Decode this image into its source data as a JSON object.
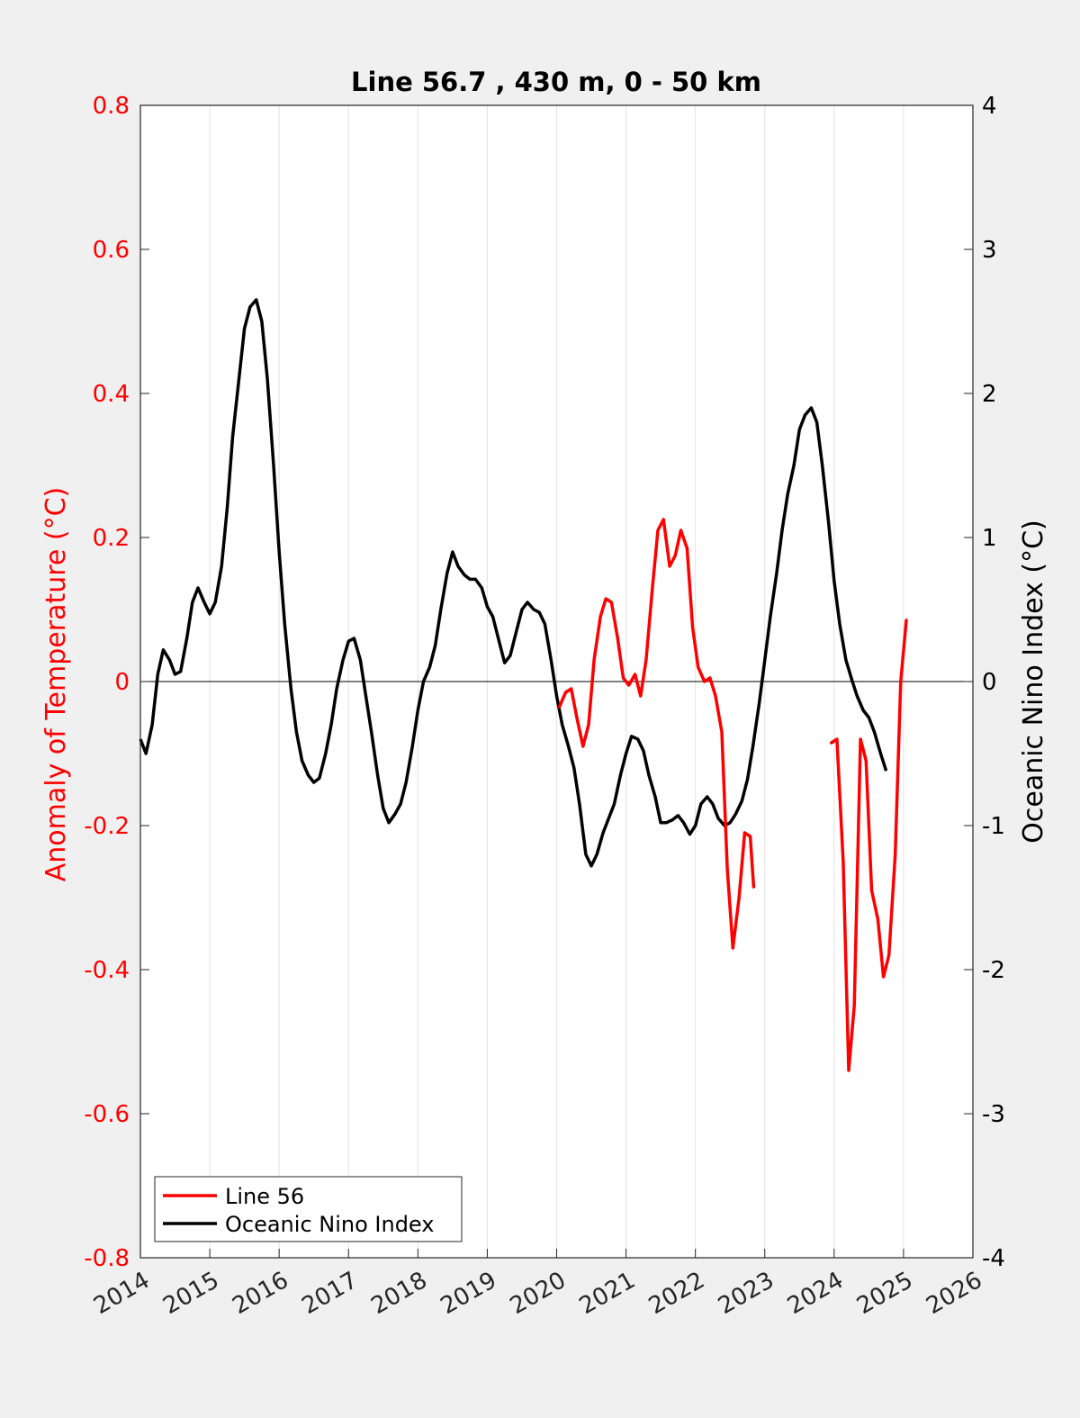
{
  "chart_data": {
    "type": "line",
    "title": "Line 56.7 , 430 m, 0 - 50 km",
    "xlabel": "",
    "ylabel_left": "Anomaly of Temperature (°C)",
    "ylabel_right": "Oceanic Nino Index (°C)",
    "xlim": [
      2014,
      2026
    ],
    "ylim_left": [
      -0.8,
      0.8
    ],
    "ylim_right": [
      -4,
      4
    ],
    "x_ticks": [
      "2014",
      "2015",
      "2016",
      "2017",
      "2018",
      "2019",
      "2020",
      "2021",
      "2022",
      "2023",
      "2024",
      "2025",
      "2026"
    ],
    "y_ticks_left": [
      "0.8",
      "0.6",
      "0.4",
      "0.2",
      "0",
      "-0.2",
      "-0.4",
      "-0.6",
      "-0.8"
    ],
    "y_ticks_right": [
      "4",
      "3",
      "2",
      "1",
      "0",
      "-1",
      "-2",
      "-3",
      "-4"
    ],
    "grid": "vertical",
    "legend_position": "bottom-left",
    "colors": {
      "line56": "#ff0000",
      "oni": "#000000",
      "left_axis": "#ff0000",
      "right_axis": "#000000"
    },
    "series": [
      {
        "name": "Line 56",
        "axis": "left",
        "segments": [
          [
            [
              2020.04,
              -0.035
            ],
            [
              2020.13,
              -0.015
            ],
            [
              2020.21,
              -0.01
            ],
            [
              2020.29,
              -0.05
            ],
            [
              2020.38,
              -0.09
            ],
            [
              2020.46,
              -0.06
            ],
            [
              2020.54,
              0.03
            ],
            [
              2020.63,
              0.09
            ],
            [
              2020.71,
              0.115
            ],
            [
              2020.79,
              0.11
            ],
            [
              2020.88,
              0.06
            ],
            [
              2020.96,
              0.005
            ],
            [
              2021.04,
              -0.005
            ],
            [
              2021.13,
              0.01
            ],
            [
              2021.21,
              -0.02
            ],
            [
              2021.29,
              0.03
            ],
            [
              2021.38,
              0.13
            ],
            [
              2021.46,
              0.21
            ],
            [
              2021.54,
              0.225
            ],
            [
              2021.63,
              0.16
            ],
            [
              2021.71,
              0.175
            ],
            [
              2021.79,
              0.21
            ],
            [
              2021.88,
              0.185
            ],
            [
              2021.96,
              0.075
            ],
            [
              2022.04,
              0.02
            ],
            [
              2022.13,
              0.0
            ],
            [
              2022.21,
              0.005
            ],
            [
              2022.29,
              -0.02
            ],
            [
              2022.38,
              -0.07
            ],
            [
              2022.46,
              -0.26
            ],
            [
              2022.54,
              -0.37
            ],
            [
              2022.63,
              -0.3
            ],
            [
              2022.71,
              -0.21
            ],
            [
              2022.79,
              -0.215
            ],
            [
              2022.84,
              -0.285
            ]
          ],
          [
            [
              2023.96,
              -0.085
            ],
            [
              2024.04,
              -0.08
            ],
            [
              2024.13,
              -0.25
            ],
            [
              2024.21,
              -0.54
            ],
            [
              2024.29,
              -0.45
            ],
            [
              2024.38,
              -0.08
            ],
            [
              2024.46,
              -0.11
            ],
            [
              2024.54,
              -0.29
            ],
            [
              2024.63,
              -0.33
            ],
            [
              2024.71,
              -0.41
            ],
            [
              2024.79,
              -0.38
            ],
            [
              2024.88,
              -0.24
            ],
            [
              2024.96,
              0.0
            ],
            [
              2025.04,
              0.085
            ]
          ]
        ]
      },
      {
        "name": "Oceanic Nino Index",
        "axis": "right",
        "points": [
          [
            2014.0,
            -0.4
          ],
          [
            2014.08,
            -0.5
          ],
          [
            2014.17,
            -0.3
          ],
          [
            2014.25,
            0.05
          ],
          [
            2014.33,
            0.22
          ],
          [
            2014.42,
            0.15
          ],
          [
            2014.5,
            0.05
          ],
          [
            2014.58,
            0.07
          ],
          [
            2014.67,
            0.3
          ],
          [
            2014.75,
            0.55
          ],
          [
            2014.83,
            0.65
          ],
          [
            2014.92,
            0.55
          ],
          [
            2015.0,
            0.47
          ],
          [
            2015.08,
            0.55
          ],
          [
            2015.17,
            0.8
          ],
          [
            2015.25,
            1.2
          ],
          [
            2015.33,
            1.7
          ],
          [
            2015.42,
            2.1
          ],
          [
            2015.5,
            2.45
          ],
          [
            2015.58,
            2.6
          ],
          [
            2015.67,
            2.65
          ],
          [
            2015.75,
            2.5
          ],
          [
            2015.83,
            2.1
          ],
          [
            2015.92,
            1.5
          ],
          [
            2016.0,
            0.9
          ],
          [
            2016.08,
            0.4
          ],
          [
            2016.17,
            -0.05
          ],
          [
            2016.25,
            -0.35
          ],
          [
            2016.33,
            -0.55
          ],
          [
            2016.42,
            -0.65
          ],
          [
            2016.5,
            -0.7
          ],
          [
            2016.58,
            -0.67
          ],
          [
            2016.67,
            -0.5
          ],
          [
            2016.75,
            -0.3
          ],
          [
            2016.83,
            -0.05
          ],
          [
            2016.92,
            0.15
          ],
          [
            2017.0,
            0.28
          ],
          [
            2017.08,
            0.3
          ],
          [
            2017.17,
            0.15
          ],
          [
            2017.25,
            -0.1
          ],
          [
            2017.33,
            -0.35
          ],
          [
            2017.42,
            -0.65
          ],
          [
            2017.5,
            -0.88
          ],
          [
            2017.58,
            -0.98
          ],
          [
            2017.67,
            -0.92
          ],
          [
            2017.75,
            -0.85
          ],
          [
            2017.83,
            -0.7
          ],
          [
            2017.92,
            -0.45
          ],
          [
            2018.0,
            -0.2
          ],
          [
            2018.08,
            0.0
          ],
          [
            2018.17,
            0.1
          ],
          [
            2018.25,
            0.25
          ],
          [
            2018.33,
            0.5
          ],
          [
            2018.42,
            0.75
          ],
          [
            2018.5,
            0.9
          ],
          [
            2018.58,
            0.8
          ],
          [
            2018.67,
            0.74
          ],
          [
            2018.75,
            0.71
          ],
          [
            2018.83,
            0.71
          ],
          [
            2018.92,
            0.65
          ],
          [
            2019.0,
            0.52
          ],
          [
            2019.08,
            0.45
          ],
          [
            2019.17,
            0.28
          ],
          [
            2019.25,
            0.13
          ],
          [
            2019.33,
            0.18
          ],
          [
            2019.42,
            0.35
          ],
          [
            2019.5,
            0.5
          ],
          [
            2019.58,
            0.55
          ],
          [
            2019.67,
            0.5
          ],
          [
            2019.75,
            0.48
          ],
          [
            2019.83,
            0.4
          ],
          [
            2019.92,
            0.15
          ],
          [
            2020.0,
            -0.1
          ],
          [
            2020.08,
            -0.3
          ],
          [
            2020.17,
            -0.45
          ],
          [
            2020.25,
            -0.6
          ],
          [
            2020.33,
            -0.85
          ],
          [
            2020.42,
            -1.2
          ],
          [
            2020.5,
            -1.28
          ],
          [
            2020.58,
            -1.2
          ],
          [
            2020.67,
            -1.05
          ],
          [
            2020.75,
            -0.95
          ],
          [
            2020.83,
            -0.85
          ],
          [
            2020.92,
            -0.65
          ],
          [
            2021.0,
            -0.5
          ],
          [
            2021.08,
            -0.38
          ],
          [
            2021.17,
            -0.4
          ],
          [
            2021.25,
            -0.48
          ],
          [
            2021.33,
            -0.65
          ],
          [
            2021.42,
            -0.8
          ],
          [
            2021.5,
            -0.98
          ],
          [
            2021.58,
            -0.98
          ],
          [
            2021.67,
            -0.96
          ],
          [
            2021.75,
            -0.93
          ],
          [
            2021.83,
            -0.98
          ],
          [
            2021.92,
            -1.06
          ],
          [
            2022.0,
            -1.0
          ],
          [
            2022.08,
            -0.85
          ],
          [
            2022.17,
            -0.8
          ],
          [
            2022.25,
            -0.85
          ],
          [
            2022.33,
            -0.95
          ],
          [
            2022.42,
            -1.0
          ],
          [
            2022.5,
            -0.98
          ],
          [
            2022.58,
            -0.92
          ],
          [
            2022.67,
            -0.83
          ],
          [
            2022.75,
            -0.68
          ],
          [
            2022.83,
            -0.45
          ],
          [
            2022.92,
            -0.15
          ],
          [
            2023.0,
            0.15
          ],
          [
            2023.08,
            0.45
          ],
          [
            2023.17,
            0.75
          ],
          [
            2023.25,
            1.05
          ],
          [
            2023.33,
            1.3
          ],
          [
            2023.42,
            1.5
          ],
          [
            2023.5,
            1.75
          ],
          [
            2023.58,
            1.85
          ],
          [
            2023.67,
            1.9
          ],
          [
            2023.75,
            1.8
          ],
          [
            2023.83,
            1.5
          ],
          [
            2023.92,
            1.1
          ],
          [
            2024.0,
            0.7
          ],
          [
            2024.08,
            0.4
          ],
          [
            2024.17,
            0.15
          ],
          [
            2024.25,
            0.02
          ],
          [
            2024.33,
            -0.1
          ],
          [
            2024.42,
            -0.2
          ],
          [
            2024.5,
            -0.25
          ],
          [
            2024.58,
            -0.35
          ],
          [
            2024.67,
            -0.5
          ],
          [
            2024.75,
            -0.62
          ]
        ]
      }
    ]
  }
}
